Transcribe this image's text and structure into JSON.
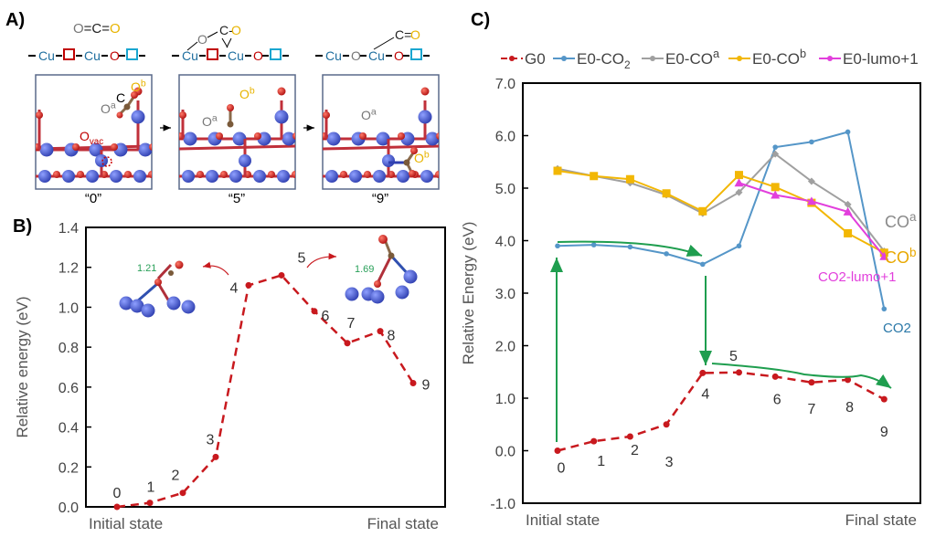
{
  "panel_a": {
    "label": "A)",
    "formula_co2": {
      "parts": [
        {
          "t": "O",
          "c": "#777777"
        },
        {
          "t": "=C=",
          "c": "#222222"
        },
        {
          "t": "O",
          "c": "#e8b400"
        }
      ]
    },
    "structures": [
      {
        "caption": "“0”",
        "chain": [
          {
            "t": "Cu",
            "c": "#1f6f9f"
          },
          {
            "t": "□",
            "c": "#c00000"
          },
          {
            "t": "Cu",
            "c": "#1f6f9f"
          },
          {
            "t": "O",
            "c": "#c00000"
          },
          {
            "t": "□",
            "c": "#1aa6d0"
          }
        ],
        "adsorbate": "",
        "labels": {
          "oa": "O",
          "oa_sup": "a",
          "c": "C",
          "ob": "O",
          "ob_sup": "b",
          "ovac": "O",
          "ovac_sub": "vac"
        }
      },
      {
        "caption": "“5”",
        "chain": [
          {
            "t": "Cu",
            "c": "#1f6f9f"
          },
          {
            "t": "□",
            "c": "#c00000"
          },
          {
            "t": "Cu",
            "c": "#1f6f9f"
          },
          {
            "t": "O",
            "c": "#c00000"
          },
          {
            "t": "□",
            "c": "#1aa6d0"
          }
        ],
        "adsorbate": {
          "o": "O",
          "c": "C-",
          "o2": "O"
        },
        "labels": {
          "oa": "O",
          "oa_sup": "a",
          "ob": "O",
          "ob_sup": "b"
        }
      },
      {
        "caption": "“9”",
        "chain": [
          {
            "t": "Cu",
            "c": "#1f6f9f"
          },
          {
            "t": "O",
            "c": "#777777"
          },
          {
            "t": "Cu",
            "c": "#1f6f9f"
          },
          {
            "t": "O",
            "c": "#c00000"
          },
          {
            "t": "□",
            "c": "#1aa6d0"
          }
        ],
        "adsorbate": {
          "c": "C=",
          "o2": "O"
        },
        "labels": {
          "oa": "O",
          "oa_sup": "a",
          "ob": "O",
          "ob_sup": "b"
        }
      }
    ],
    "arrow_icon": "right-arrow-icon"
  },
  "chart_data": [
    {
      "panel_label": "B)",
      "type": "line",
      "x": [
        "0",
        "1",
        "2",
        "3",
        "4",
        "5",
        "6",
        "7",
        "8",
        "9"
      ],
      "series": [
        {
          "values": [
            0.0,
            0.02,
            0.07,
            0.25,
            1.11,
            1.16,
            0.98,
            0.82,
            0.88,
            0.62
          ],
          "color": "#c8191e",
          "style": "dashed",
          "marker": "circle"
        }
      ],
      "point_labels": [
        "0",
        "1",
        "2",
        "3",
        "4",
        "5",
        "6",
        "7",
        "8",
        "9"
      ],
      "xlabel_left": "Initial state",
      "xlabel_right": "Final state",
      "ylabel": "Relative energy (eV)",
      "ylim": [
        0.0,
        1.4
      ],
      "yticks": [
        "0.0",
        "0.2",
        "0.4",
        "0.6",
        "0.8",
        "1.0",
        "1.2",
        "1.4"
      ],
      "grid": false,
      "insets": [
        {
          "bond_length": "1.21",
          "points_to": "4"
        },
        {
          "bond_length": "1.69",
          "points_to": "5"
        }
      ],
      "annotation_color": "#2aa05a"
    },
    {
      "panel_label": "C)",
      "type": "line",
      "x": [
        "0",
        "1",
        "2",
        "3",
        "4",
        "5",
        "6",
        "7",
        "8",
        "9"
      ],
      "series": [
        {
          "name": "G0",
          "values": [
            0.0,
            0.18,
            0.27,
            0.5,
            1.48,
            1.49,
            1.41,
            1.3,
            1.35,
            0.98
          ],
          "color": "#c8191e",
          "style": "dashed",
          "marker": "circle"
        },
        {
          "name": "E0-CO2",
          "name_main": "E0-CO",
          "name_sub": "2",
          "values": [
            3.9,
            3.92,
            3.88,
            3.75,
            3.55,
            3.9,
            5.78,
            5.88,
            6.07,
            2.7
          ],
          "color": "#5596c8",
          "style": "solid",
          "marker": "circle"
        },
        {
          "name": "E0-COa",
          "name_main": "E0-CO",
          "name_sup": "a",
          "values": [
            5.37,
            5.23,
            5.1,
            4.87,
            4.52,
            4.92,
            5.65,
            5.13,
            4.69,
            3.8
          ],
          "color": "#a0a0a0",
          "style": "solid",
          "marker": "diamond"
        },
        {
          "name": "E0-COb",
          "name_main": "E0-CO",
          "name_sup": "b",
          "values": [
            5.33,
            5.23,
            5.17,
            4.9,
            4.56,
            5.25,
            5.02,
            4.72,
            4.14,
            3.77
          ],
          "color": "#f2b705",
          "style": "solid",
          "marker": "square"
        },
        {
          "name": "E0-lumo+1",
          "name_main": "E0-lumo+1",
          "values": [
            null,
            null,
            null,
            null,
            null,
            5.1,
            4.87,
            4.75,
            4.55,
            3.7
          ],
          "color": "#e23fdc",
          "style": "solid",
          "marker": "triangle"
        }
      ],
      "point_labels": [
        "0",
        "1",
        "2",
        "3",
        "4",
        "5",
        "6",
        "7",
        "8",
        "9"
      ],
      "xlabel_left": "Initial state",
      "xlabel_right": "Final state",
      "ylabel": "Relative Energy (eV)",
      "ylim": [
        -1.0,
        7.0
      ],
      "yticks": [
        "-1.0",
        "0.0",
        "1.0",
        "2.0",
        "3.0",
        "4.0",
        "5.0",
        "6.0",
        "7.0"
      ],
      "grid": false,
      "legend_position": "top",
      "end_labels": [
        {
          "main": "CO",
          "sup": "a",
          "color": "#8a8a8a"
        },
        {
          "main": "CO",
          "sup": "b",
          "color": "#e8a800"
        },
        {
          "main": "CO2-lumo+1",
          "color": "#e23fdc"
        },
        {
          "main": "CO2",
          "color": "#2a78a8"
        }
      ],
      "annotation_color": "#1f9e4f"
    }
  ]
}
